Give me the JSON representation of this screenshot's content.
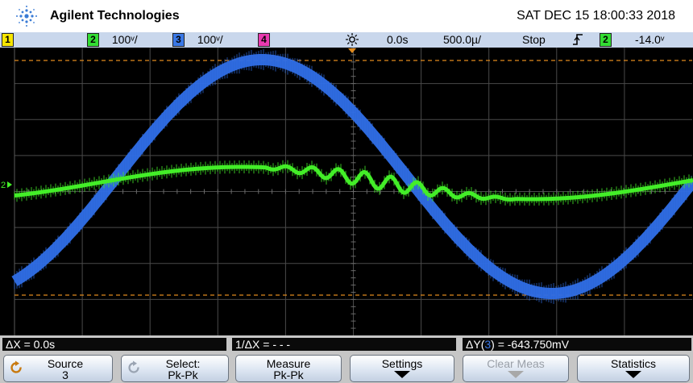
{
  "header": {
    "brand": "Agilent Technologies",
    "datetime": "SAT DEC 15 18:00:33 2018",
    "logo_icon": "agilent-spark-icon"
  },
  "status": {
    "ch1": "1",
    "ch2": "2",
    "ch2_scale": "100ᵛ/",
    "ch3": "3",
    "ch3_scale": "100ᵛ/",
    "ch4": "4",
    "delay": "0.0s",
    "timebase": "500.0µ/",
    "run_state": "Stop",
    "trigger_edge_icon": "rising-edge-icon",
    "trigger_source": "2",
    "trigger_level": "-14.0ᵛ",
    "colors": {
      "ch1": "#f7e600",
      "ch2": "#33dd33",
      "ch3": "#3a78e6",
      "ch4": "#e83ab0"
    }
  },
  "screen": {
    "ch2_ground_marker": "2",
    "trace_colors": {
      "ch2": "#43ee28",
      "ch3": "#2f6ee6"
    },
    "cursor_color": "#e08a1e"
  },
  "readouts": {
    "delta_x": "ΔX = 0.0s",
    "inv_delta_x": "1/ΔX = - - -",
    "delta_y_prefix": "ΔY(",
    "delta_y_channel": "3",
    "delta_y_suffix": ") = -643.750mV"
  },
  "softkeys": {
    "source": {
      "label": "Source",
      "value": "3"
    },
    "select": {
      "label": "Select:",
      "value": "Pk-Pk"
    },
    "measure": {
      "label": "Measure",
      "value": "Pk-Pk"
    },
    "settings": {
      "label": "Settings"
    },
    "clear_meas": {
      "label": "Clear Meas"
    },
    "statistics": {
      "label": "Statistics"
    }
  }
}
